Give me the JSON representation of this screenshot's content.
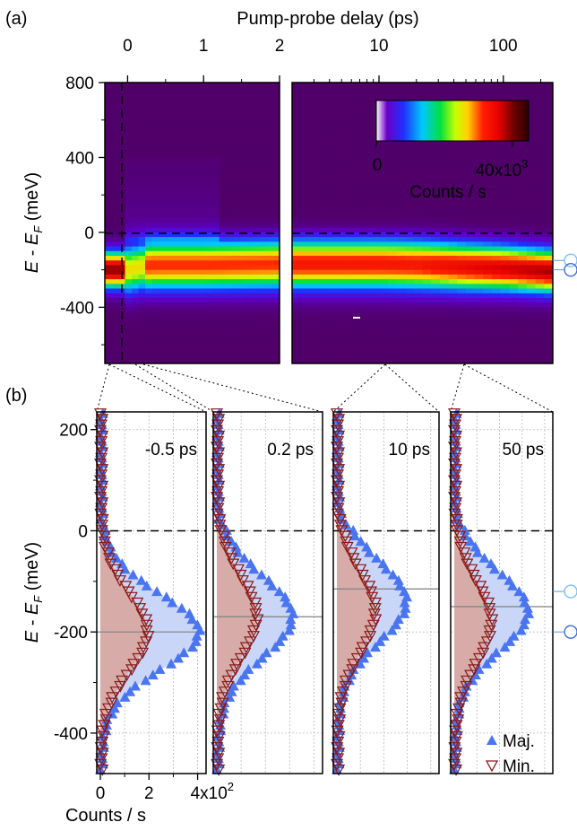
{
  "chart_data": [
    {
      "panel": "(a)",
      "type": "heatmap",
      "top_axis_label": "Pump-probe delay (ps)",
      "x_ticks_linear": [
        "0",
        "1",
        "2"
      ],
      "x_ticks_log": [
        "10",
        "100"
      ],
      "x_range_linear_ps": [
        -0.3,
        2
      ],
      "x_range_log_ps": [
        2,
        250
      ],
      "x_scale_right_segment": "log",
      "ylabel": "E - E_F (meV)",
      "y_ticks": [
        "800",
        "400",
        "0",
        "-400"
      ],
      "ylim": [
        -700,
        800
      ],
      "colorbar": {
        "min_label": "0",
        "max_label": "40x10",
        "max_exp": "3",
        "label": "Counts / s",
        "max_value": 40000
      },
      "band_center_meV": {
        "linear_segment": [
          [
            -0.3,
            -200
          ],
          [
            0,
            -200
          ],
          [
            0.3,
            -175
          ],
          [
            1,
            -175
          ],
          [
            2,
            -170
          ]
        ],
        "log_segment": [
          [
            2,
            -170
          ],
          [
            10,
            -170
          ],
          [
            50,
            -185
          ],
          [
            150,
            -200
          ],
          [
            250,
            -210
          ]
        ]
      },
      "marker_energies_meV": [
        -150,
        -200
      ],
      "dashed_lines": {
        "delay_zero_ps": 0,
        "fermi_level_meV": 0
      }
    },
    {
      "panel": "(b)",
      "type": "scatter",
      "ylabel": "E - E_F (meV)",
      "xlabel": "Counts / s",
      "x_tick_labels": [
        "0",
        "2",
        "4x10"
      ],
      "x_tick_exp": "2",
      "xlim": [
        0,
        420
      ],
      "y_ticks": [
        "200",
        "0",
        "-200",
        "-400"
      ],
      "ylim": [
        -480,
        235
      ],
      "legend": [
        {
          "name": "Maj.",
          "color": "#4a75f0"
        },
        {
          "name": "Min.",
          "color": "#8b1a1a"
        }
      ],
      "panels": [
        {
          "delay": "-0.5 ps",
          "maj_peak_meV": -200,
          "maj_amplitude": 400,
          "maj_width": 75,
          "min_peak_meV": -200,
          "min_amplitude": 190,
          "min_width": 78,
          "peak_line_meV": -200
        },
        {
          "delay": "0.2 ps",
          "maj_peak_meV": -170,
          "maj_amplitude": 305,
          "maj_width": 80,
          "min_peak_meV": -170,
          "min_amplitude": 160,
          "min_width": 80,
          "peak_line_meV": -170
        },
        {
          "delay": "10 ps",
          "maj_peak_meV": -140,
          "maj_amplitude": 290,
          "maj_width": 80,
          "min_peak_meV": -160,
          "min_amplitude": 160,
          "min_width": 80,
          "peak_line_meV": -115
        },
        {
          "delay": "50 ps",
          "maj_peak_meV": -160,
          "maj_amplitude": 320,
          "maj_width": 78,
          "min_peak_meV": -180,
          "min_amplitude": 160,
          "min_width": 80,
          "peak_line_meV": -150
        }
      ],
      "marker_energies_meV": [
        -120,
        -200
      ]
    }
  ],
  "labels": {
    "panel_a": "(a)",
    "panel_b": "(b)",
    "top_axis": "Pump-probe delay (ps)",
    "colorbar_min": "0",
    "colorbar_max": "40x10",
    "colorbar_exp": "3",
    "colorbar_label": "Counts / s",
    "bottom_axis": "Counts / s",
    "legend_maj": "Maj.",
    "legend_min": "Min."
  },
  "colors": {
    "majority": "#4a75f0",
    "minority": "#8b1a1a",
    "majority_fill": "#c9d6f7",
    "minority_fill": "#d7aca8",
    "marker_circle": "#5b9bd5"
  }
}
